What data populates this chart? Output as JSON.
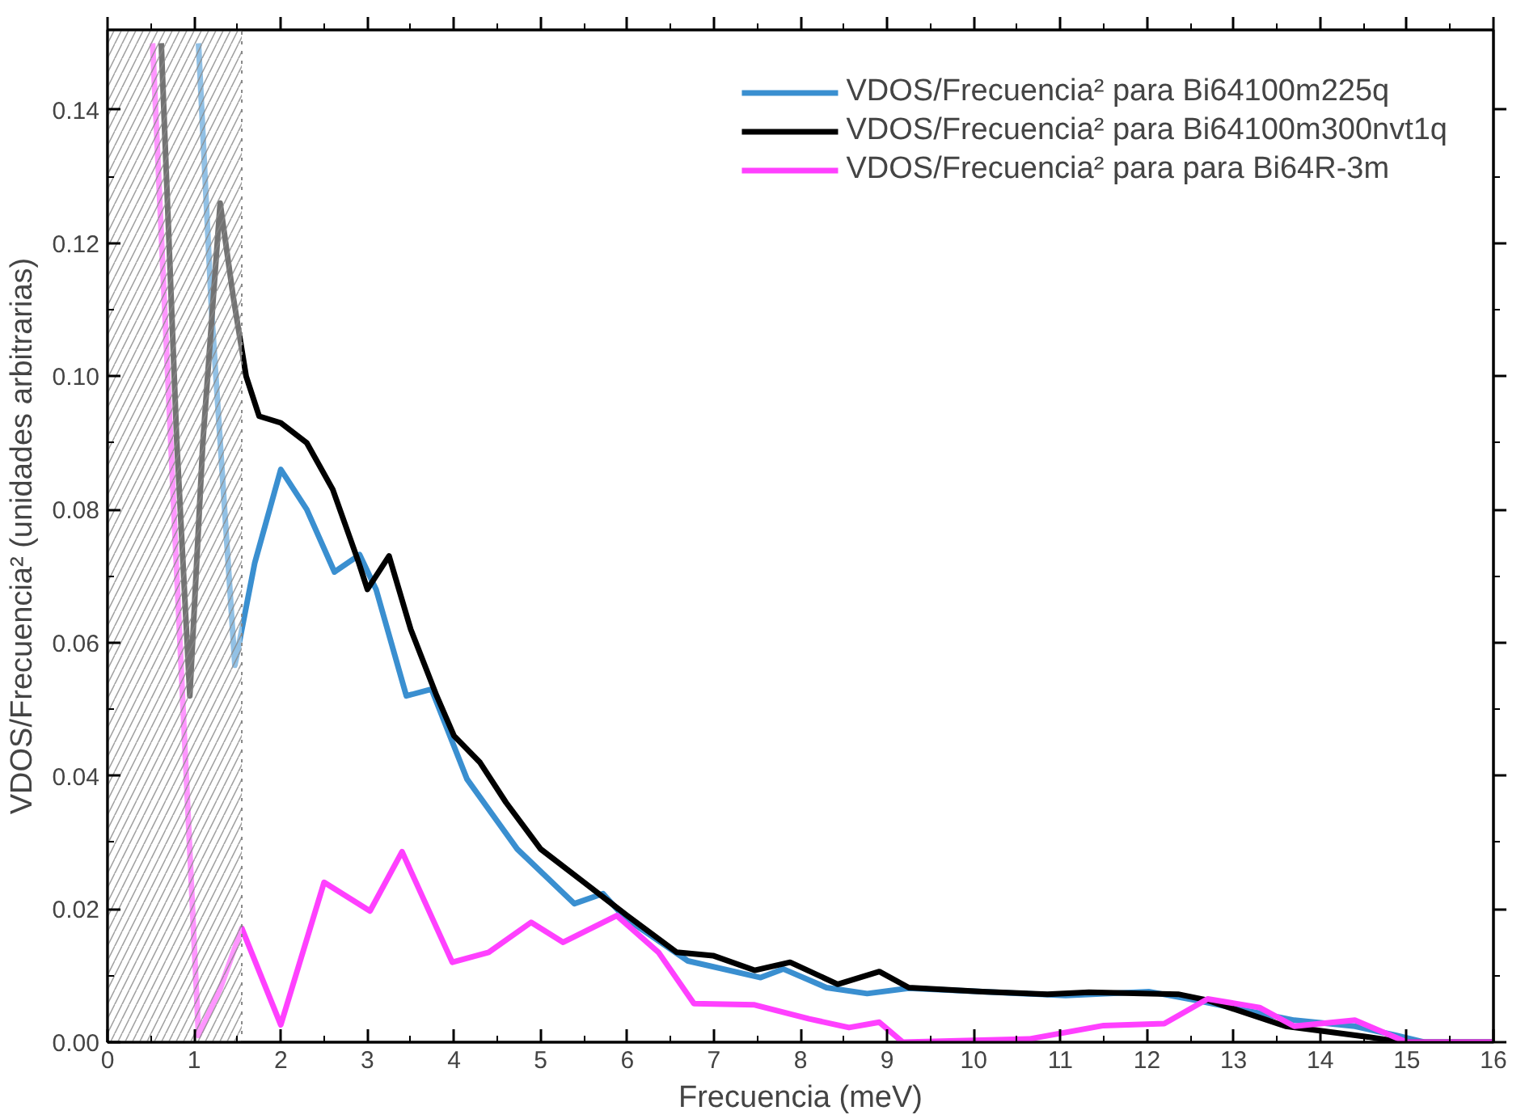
{
  "chart_data": {
    "type": "line",
    "xlabel": "Frecuencia (meV)",
    "ylabel": "VDOS/Frecuencia² (unidades arbitrarias)",
    "xlim": [
      0,
      16
    ],
    "ylim": [
      0,
      0.152
    ],
    "xticks": [
      0,
      1,
      2,
      3,
      4,
      5,
      6,
      7,
      8,
      9,
      10,
      11,
      12,
      13,
      14,
      15,
      16
    ],
    "yticks": [
      {
        "value": 0,
        "label": "0.00"
      },
      {
        "value": 0.02,
        "label": "0.02"
      },
      {
        "value": 0.04,
        "label": "0.04"
      },
      {
        "value": 0.06,
        "label": "0.06"
      },
      {
        "value": 0.08,
        "label": "0.08"
      },
      {
        "value": 0.1,
        "label": "0.10"
      },
      {
        "value": 0.12,
        "label": "0.12"
      },
      {
        "value": 0.14,
        "label": "0.14"
      }
    ],
    "grid": false,
    "legend": "top right",
    "line_style": "solid",
    "bands": [
      {
        "axis": "x",
        "from": 0,
        "to": 1.55,
        "color": "#888888"
      }
    ],
    "series": [
      {
        "name": "VDOS/Frecuencia² para Bi64100m225q",
        "color": "#3a8fd0",
        "x": [
          1.05,
          1.2,
          1.47,
          1.7,
          2.0,
          2.3,
          2.62,
          2.91,
          3.1,
          3.45,
          3.74,
          4.15,
          4.73,
          5.39,
          5.72,
          5.97,
          6.7,
          7.54,
          7.8,
          8.3,
          8.77,
          9.25,
          10.1,
          11.06,
          12.02,
          12.56,
          13.7,
          14.4,
          14.88,
          15.2,
          16
        ],
        "values": [
          0.15,
          0.11,
          0.0566,
          0.072,
          0.086,
          0.08,
          0.0706,
          0.0732,
          0.068,
          0.052,
          0.053,
          0.0395,
          0.029,
          0.0208,
          0.0223,
          0.0187,
          0.0122,
          0.0097,
          0.011,
          0.0082,
          0.0073,
          0.0081,
          0.0076,
          0.007,
          0.0076,
          0.0063,
          0.0033,
          0.0024,
          0.001,
          0.0,
          0.0
        ]
      },
      {
        "name": "VDOS/Frecuencia² para Bi64100m300nvt1q",
        "color": "#000000",
        "x": [
          0.62,
          0.8,
          0.95,
          1.1,
          1.3,
          1.45,
          1.6,
          1.75,
          2.0,
          2.3,
          2.6,
          2.9,
          3.0,
          3.25,
          3.5,
          3.8,
          4.0,
          4.3,
          4.6,
          5.0,
          5.5,
          6.0,
          6.57,
          6.99,
          7.47,
          7.88,
          8.43,
          8.91,
          9.25,
          10.1,
          10.85,
          11.33,
          12.36,
          12.7,
          13.6,
          14.55,
          14.95,
          16
        ],
        "values": [
          0.15,
          0.09,
          0.052,
          0.09,
          0.126,
          0.112,
          0.1,
          0.094,
          0.093,
          0.09,
          0.083,
          0.072,
          0.068,
          0.073,
          0.062,
          0.052,
          0.046,
          0.042,
          0.036,
          0.029,
          0.024,
          0.019,
          0.0135,
          0.013,
          0.0108,
          0.012,
          0.0087,
          0.0106,
          0.0082,
          0.0076,
          0.0072,
          0.0075,
          0.0072,
          0.0063,
          0.0024,
          0.0008,
          0.0,
          0.0
        ]
      },
      {
        "name": "VDOS/Frecuencia² para para Bi64R-3m",
        "color": "#ff40ff",
        "x": [
          0.52,
          0.8,
          1.05,
          1.3,
          1.55,
          2.0,
          2.5,
          3.03,
          3.4,
          3.98,
          4.4,
          4.89,
          5.26,
          5.88,
          6.36,
          6.77,
          7.47,
          8.1,
          8.56,
          8.91,
          9.18,
          10.65,
          11.5,
          12.2,
          12.7,
          13.3,
          13.7,
          14.4,
          15.0,
          16
        ],
        "values": [
          0.15,
          0.07,
          0.001,
          0.008,
          0.0171,
          0.0026,
          0.024,
          0.0197,
          0.0286,
          0.012,
          0.0135,
          0.018,
          0.015,
          0.019,
          0.0135,
          0.0058,
          0.0056,
          0.0035,
          0.0022,
          0.003,
          0.0,
          0.0005,
          0.0025,
          0.0028,
          0.0065,
          0.0052,
          0.0024,
          0.0033,
          0.0,
          0.0
        ]
      }
    ]
  }
}
